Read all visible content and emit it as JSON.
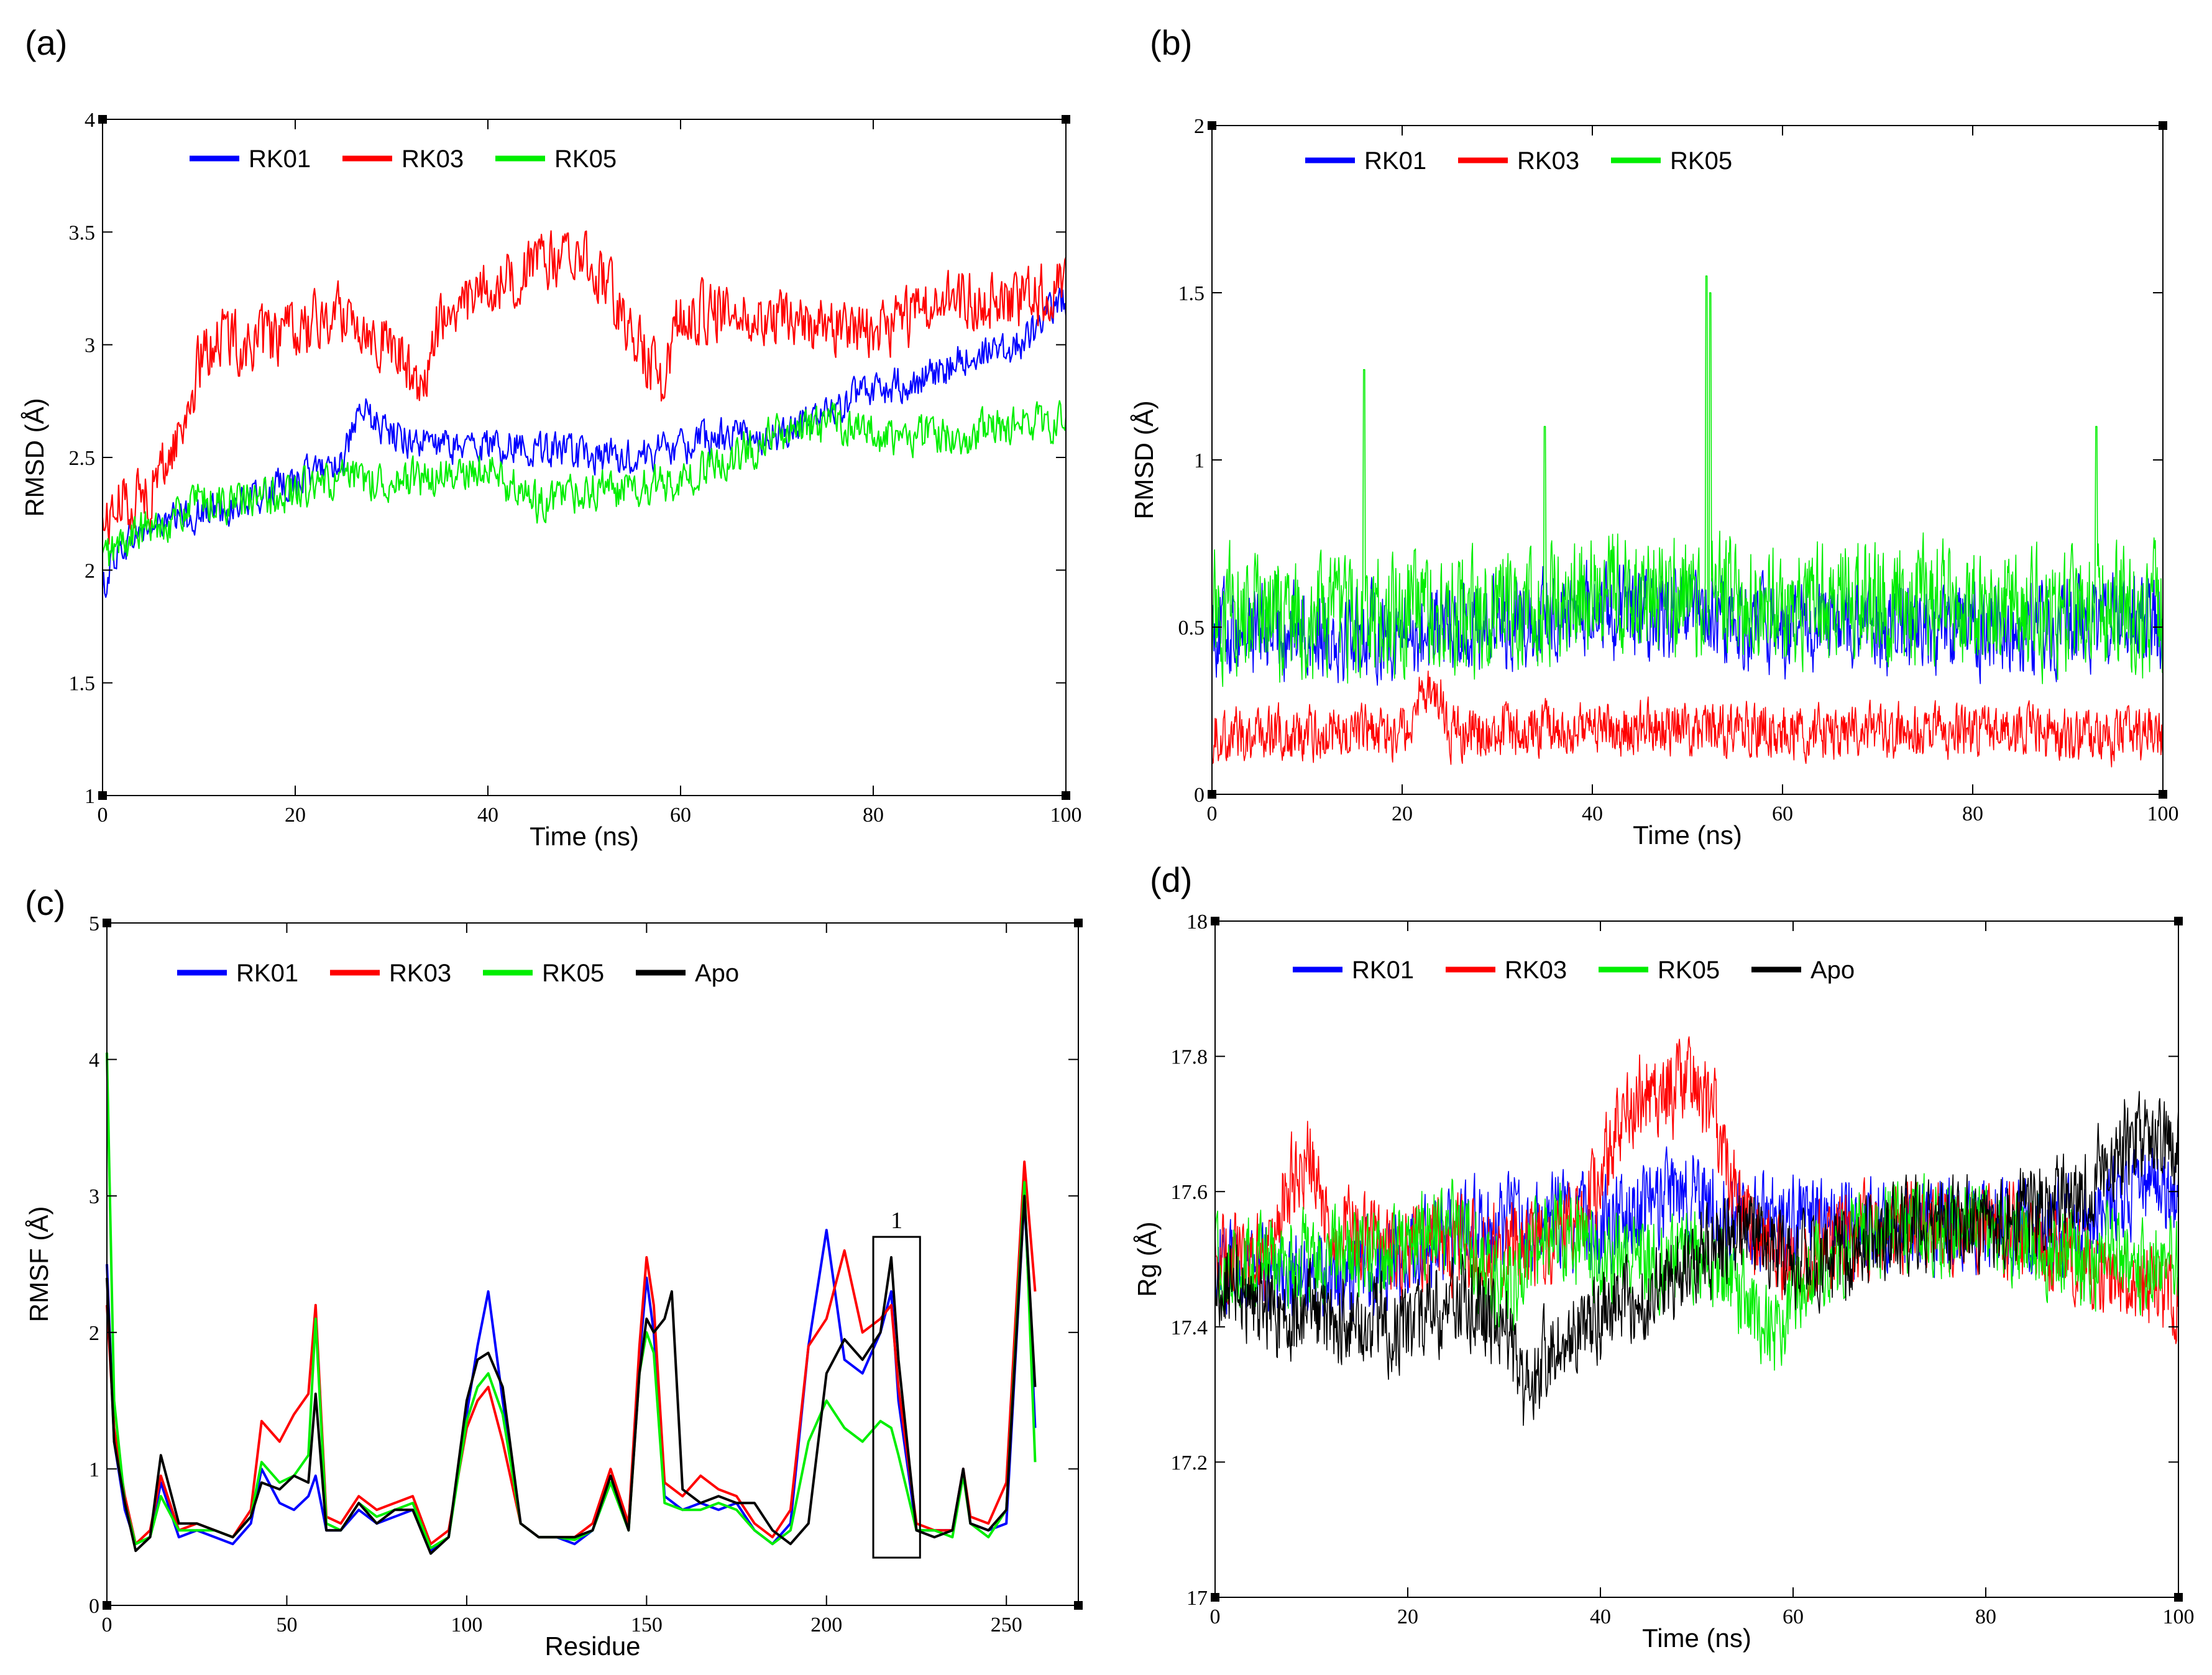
{
  "chart_data": [
    {
      "panel": "(a)",
      "type": "line",
      "xlabel": "Time (ns)",
      "ylabel": "RMSD (Å)",
      "xlim": [
        0,
        100
      ],
      "ylim": [
        1,
        4
      ],
      "xticks": [
        0,
        20,
        40,
        60,
        80,
        100
      ],
      "yticks": [
        1,
        1.5,
        2,
        2.5,
        3,
        3.5,
        4
      ],
      "xtick_labels": [
        "0",
        "20",
        "40",
        "60",
        "80",
        "100"
      ],
      "ytick_labels": [
        "1",
        "1.5",
        "2",
        "2.5",
        "3",
        "3.5",
        "4"
      ],
      "legend_position": "top-left",
      "series": [
        {
          "name": "RK01",
          "color": "#0000ff",
          "noise": 0.07,
          "x": [
            0,
            1,
            3,
            6,
            10,
            15,
            20,
            25,
            27,
            30,
            35,
            40,
            45,
            50,
            55,
            60,
            65,
            70,
            75,
            80,
            85,
            90,
            95,
            100
          ],
          "y": [
            1.9,
            2.05,
            2.15,
            2.2,
            2.25,
            2.3,
            2.4,
            2.5,
            2.7,
            2.6,
            2.55,
            2.55,
            2.55,
            2.5,
            2.5,
            2.55,
            2.6,
            2.6,
            2.7,
            2.8,
            2.85,
            2.95,
            3.0,
            3.2
          ]
        },
        {
          "name": "RK03",
          "color": "#ff0000",
          "noise": 0.12,
          "x": [
            0,
            2,
            5,
            8,
            10,
            12,
            15,
            20,
            25,
            30,
            33,
            35,
            40,
            45,
            50,
            52,
            55,
            58,
            60,
            65,
            70,
            75,
            80,
            85,
            90,
            95,
            100
          ],
          "y": [
            2.2,
            2.3,
            2.35,
            2.6,
            2.9,
            3.05,
            3.0,
            3.05,
            3.15,
            3.0,
            2.8,
            3.1,
            3.25,
            3.35,
            3.4,
            3.3,
            3.05,
            2.85,
            3.15,
            3.15,
            3.1,
            3.1,
            3.05,
            3.15,
            3.2,
            3.2,
            3.25
          ]
        },
        {
          "name": "RK05",
          "color": "#00ee00",
          "noise": 0.08,
          "x": [
            0,
            3,
            6,
            10,
            15,
            20,
            25,
            30,
            35,
            40,
            45,
            50,
            55,
            60,
            65,
            70,
            75,
            80,
            85,
            90,
            95,
            100
          ],
          "y": [
            2.05,
            2.15,
            2.2,
            2.3,
            2.3,
            2.35,
            2.4,
            2.4,
            2.4,
            2.45,
            2.3,
            2.35,
            2.35,
            2.4,
            2.5,
            2.6,
            2.65,
            2.6,
            2.6,
            2.6,
            2.65,
            2.65
          ]
        }
      ]
    },
    {
      "panel": "(b)",
      "type": "line",
      "xlabel": "Time (ns)",
      "ylabel": "RMSD (Å)",
      "xlim": [
        0,
        100
      ],
      "ylim": [
        0,
        2
      ],
      "xticks": [
        0,
        20,
        40,
        60,
        80,
        100
      ],
      "yticks": [
        0,
        0.5,
        1,
        1.5,
        2
      ],
      "xtick_labels": [
        "0",
        "20",
        "40",
        "60",
        "80",
        "100"
      ],
      "ytick_labels": [
        "0",
        "0.5",
        "1",
        "1.5",
        "2"
      ],
      "legend_position": "top-left",
      "series": [
        {
          "name": "RK01",
          "color": "#0000ff",
          "noise": 0.12,
          "x": [
            0,
            20,
            40,
            60,
            80,
            100
          ],
          "y": [
            0.5,
            0.48,
            0.55,
            0.5,
            0.5,
            0.52
          ]
        },
        {
          "name": "RK03",
          "color": "#ff0000",
          "noise": 0.07,
          "x": [
            0,
            20,
            22,
            24,
            25,
            27,
            40,
            60,
            80,
            100
          ],
          "y": [
            0.18,
            0.18,
            0.3,
            0.3,
            0.18,
            0.18,
            0.2,
            0.19,
            0.19,
            0.17
          ]
        },
        {
          "name": "RK05",
          "color": "#00ee00",
          "noise": 0.16,
          "x": [
            0,
            10,
            20,
            30,
            40,
            50,
            60,
            70,
            80,
            90,
            100
          ],
          "y": [
            0.55,
            0.52,
            0.53,
            0.55,
            0.6,
            0.6,
            0.58,
            0.58,
            0.55,
            0.55,
            0.55
          ],
          "spikes": [
            [
              16,
              1.27
            ],
            [
              52,
              1.55
            ],
            [
              52.4,
              1.5
            ],
            [
              35,
              1.1
            ],
            [
              93,
              1.1
            ]
          ]
        }
      ]
    },
    {
      "panel": "(c)",
      "type": "line",
      "xlabel": "Residue",
      "ylabel": "RMSF (Å)",
      "xlim": [
        0,
        270
      ],
      "ylim": [
        0,
        5
      ],
      "xticks": [
        0,
        50,
        100,
        150,
        200,
        250
      ],
      "yticks": [
        0,
        1,
        2,
        3,
        4,
        5
      ],
      "xtick_labels": [
        "0",
        "50",
        "100",
        "150",
        "200",
        "250"
      ],
      "ytick_labels": [
        "0",
        "1",
        "2",
        "3",
        "4",
        "5"
      ],
      "legend_position": "top-left",
      "annotation": {
        "label": "1",
        "x0": 213,
        "x1": 226,
        "y0": 0.35,
        "y1": 2.7
      },
      "series": [
        {
          "name": "RK01",
          "color": "#0000ff",
          "x": [
            0,
            2,
            5,
            8,
            12,
            15,
            20,
            25,
            30,
            35,
            40,
            43,
            48,
            52,
            56,
            58,
            61,
            65,
            70,
            75,
            80,
            85,
            90,
            95,
            100,
            103,
            106,
            110,
            115,
            120,
            125,
            130,
            135,
            140,
            145,
            148,
            150,
            152,
            155,
            160,
            165,
            170,
            175,
            180,
            185,
            190,
            195,
            200,
            205,
            210,
            215,
            218,
            220,
            225,
            230,
            235,
            238,
            240,
            245,
            250,
            255,
            258
          ],
          "y": [
            2.5,
            1.2,
            0.7,
            0.45,
            0.5,
            0.9,
            0.5,
            0.55,
            0.5,
            0.45,
            0.6,
            1.0,
            0.75,
            0.7,
            0.8,
            0.95,
            0.55,
            0.55,
            0.7,
            0.6,
            0.65,
            0.7,
            0.4,
            0.5,
            1.4,
            1.9,
            2.3,
            1.5,
            0.6,
            0.5,
            0.5,
            0.45,
            0.55,
            0.9,
            0.6,
            1.8,
            2.4,
            2.0,
            0.8,
            0.7,
            0.75,
            0.7,
            0.75,
            0.55,
            0.45,
            0.6,
            1.9,
            2.75,
            1.8,
            1.7,
            2.0,
            2.3,
            1.5,
            0.55,
            0.55,
            0.55,
            1.0,
            0.6,
            0.55,
            0.6,
            3.0,
            1.3
          ]
        },
        {
          "name": "RK03",
          "color": "#ff0000",
          "x": [
            0,
            2,
            5,
            8,
            12,
            15,
            20,
            25,
            30,
            35,
            40,
            43,
            48,
            52,
            56,
            58,
            61,
            65,
            70,
            75,
            80,
            85,
            90,
            95,
            100,
            103,
            106,
            110,
            115,
            120,
            125,
            130,
            135,
            140,
            145,
            148,
            150,
            152,
            155,
            160,
            165,
            170,
            175,
            180,
            185,
            190,
            195,
            200,
            205,
            210,
            215,
            218,
            220,
            225,
            230,
            235,
            238,
            240,
            245,
            250,
            255,
            258
          ],
          "y": [
            2.2,
            1.3,
            0.8,
            0.45,
            0.55,
            0.95,
            0.55,
            0.6,
            0.55,
            0.5,
            0.7,
            1.35,
            1.2,
            1.4,
            1.55,
            2.2,
            0.65,
            0.6,
            0.8,
            0.7,
            0.75,
            0.8,
            0.45,
            0.55,
            1.3,
            1.5,
            1.6,
            1.2,
            0.6,
            0.5,
            0.5,
            0.5,
            0.6,
            1.0,
            0.6,
            1.9,
            2.55,
            2.2,
            0.9,
            0.8,
            0.95,
            0.85,
            0.8,
            0.6,
            0.5,
            0.7,
            1.9,
            2.1,
            2.6,
            2.0,
            2.1,
            2.2,
            1.6,
            0.6,
            0.55,
            0.55,
            1.0,
            0.65,
            0.6,
            0.9,
            3.25,
            2.3
          ]
        },
        {
          "name": "RK05",
          "color": "#00ee00",
          "x": [
            0,
            2,
            5,
            8,
            12,
            15,
            20,
            25,
            30,
            35,
            40,
            43,
            48,
            52,
            56,
            58,
            61,
            65,
            70,
            75,
            80,
            85,
            90,
            95,
            100,
            103,
            106,
            110,
            115,
            120,
            125,
            130,
            135,
            140,
            145,
            148,
            150,
            152,
            155,
            160,
            165,
            170,
            175,
            180,
            185,
            190,
            195,
            200,
            205,
            210,
            215,
            218,
            220,
            225,
            230,
            235,
            238,
            240,
            245,
            250,
            255,
            258
          ],
          "y": [
            4.05,
            1.5,
            0.75,
            0.45,
            0.5,
            0.8,
            0.55,
            0.55,
            0.55,
            0.5,
            0.65,
            1.05,
            0.9,
            0.95,
            1.1,
            2.1,
            0.6,
            0.55,
            0.75,
            0.65,
            0.7,
            0.75,
            0.42,
            0.5,
            1.35,
            1.6,
            1.7,
            1.4,
            0.6,
            0.5,
            0.5,
            0.48,
            0.55,
            0.9,
            0.55,
            1.7,
            2.0,
            1.85,
            0.75,
            0.7,
            0.7,
            0.75,
            0.7,
            0.55,
            0.45,
            0.55,
            1.2,
            1.5,
            1.3,
            1.2,
            1.35,
            1.3,
            1.1,
            0.55,
            0.55,
            0.5,
            0.95,
            0.6,
            0.5,
            0.7,
            3.1,
            1.05
          ]
        },
        {
          "name": "Apo",
          "color": "#000000",
          "x": [
            0,
            2,
            5,
            8,
            12,
            15,
            20,
            25,
            30,
            35,
            40,
            43,
            48,
            52,
            56,
            58,
            61,
            65,
            70,
            75,
            80,
            85,
            90,
            95,
            100,
            103,
            106,
            110,
            115,
            120,
            125,
            130,
            135,
            140,
            145,
            148,
            150,
            152,
            155,
            157,
            160,
            165,
            170,
            175,
            180,
            185,
            190,
            195,
            200,
            205,
            210,
            215,
            218,
            220,
            225,
            230,
            235,
            238,
            240,
            245,
            250,
            255,
            258
          ],
          "y": [
            2.4,
            1.2,
            0.75,
            0.4,
            0.5,
            1.1,
            0.6,
            0.6,
            0.55,
            0.5,
            0.65,
            0.9,
            0.85,
            0.95,
            0.9,
            1.55,
            0.55,
            0.55,
            0.75,
            0.6,
            0.7,
            0.7,
            0.38,
            0.5,
            1.5,
            1.8,
            1.85,
            1.6,
            0.6,
            0.5,
            0.5,
            0.5,
            0.55,
            0.95,
            0.55,
            1.7,
            2.1,
            2.0,
            2.1,
            2.3,
            0.85,
            0.75,
            0.8,
            0.75,
            0.75,
            0.55,
            0.45,
            0.6,
            1.7,
            1.95,
            1.8,
            2.0,
            2.55,
            1.8,
            0.55,
            0.5,
            0.55,
            1.0,
            0.6,
            0.55,
            0.7,
            3.0,
            1.6
          ]
        }
      ]
    },
    {
      "panel": "(d)",
      "type": "line",
      "xlabel": "Time (ns)",
      "ylabel": "Rg (Å)",
      "xlim": [
        0,
        100
      ],
      "ylim": [
        17,
        18
      ],
      "xticks": [
        0,
        20,
        40,
        60,
        80,
        100
      ],
      "yticks": [
        17,
        17.2,
        17.4,
        17.6,
        17.8,
        18
      ],
      "xtick_labels": [
        "0",
        "20",
        "40",
        "60",
        "80",
        "100"
      ],
      "ytick_labels": [
        "17",
        "17.2",
        "17.4",
        "17.6",
        "17.8",
        "18"
      ],
      "legend_position": "top-left",
      "series": [
        {
          "name": "RK01",
          "color": "#0000ff",
          "noise": 0.06,
          "x": [
            0,
            10,
            20,
            25,
            30,
            40,
            45,
            50,
            55,
            60,
            70,
            80,
            90,
            95,
            100
          ],
          "y": [
            17.5,
            17.47,
            17.5,
            17.55,
            17.55,
            17.55,
            17.58,
            17.6,
            17.55,
            17.55,
            17.55,
            17.55,
            17.55,
            17.6,
            17.6
          ]
        },
        {
          "name": "RK03",
          "color": "#ff0000",
          "noise": 0.06,
          "x": [
            0,
            5,
            8,
            10,
            12,
            20,
            30,
            38,
            42,
            45,
            50,
            52,
            55,
            60,
            70,
            80,
            90,
            100
          ],
          "y": [
            17.5,
            17.5,
            17.62,
            17.65,
            17.55,
            17.52,
            17.52,
            17.55,
            17.7,
            17.75,
            17.75,
            17.7,
            17.55,
            17.5,
            17.55,
            17.55,
            17.5,
            17.45
          ]
        },
        {
          "name": "RK05",
          "color": "#00ee00",
          "noise": 0.06,
          "x": [
            0,
            10,
            20,
            25,
            30,
            35,
            40,
            45,
            50,
            55,
            58,
            62,
            70,
            80,
            90,
            100
          ],
          "y": [
            17.5,
            17.5,
            17.52,
            17.55,
            17.45,
            17.55,
            17.5,
            17.5,
            17.5,
            17.45,
            17.38,
            17.5,
            17.55,
            17.55,
            17.5,
            17.5
          ]
        },
        {
          "name": "Apo",
          "color": "#000000",
          "noise": 0.06,
          "x": [
            0,
            5,
            10,
            20,
            25,
            30,
            32,
            35,
            40,
            45,
            50,
            55,
            60,
            65,
            70,
            80,
            90,
            95,
            100
          ],
          "y": [
            17.48,
            17.42,
            17.42,
            17.4,
            17.45,
            17.4,
            17.3,
            17.38,
            17.42,
            17.45,
            17.5,
            17.55,
            17.5,
            17.5,
            17.55,
            17.55,
            17.6,
            17.68,
            17.65
          ]
        }
      ]
    }
  ]
}
